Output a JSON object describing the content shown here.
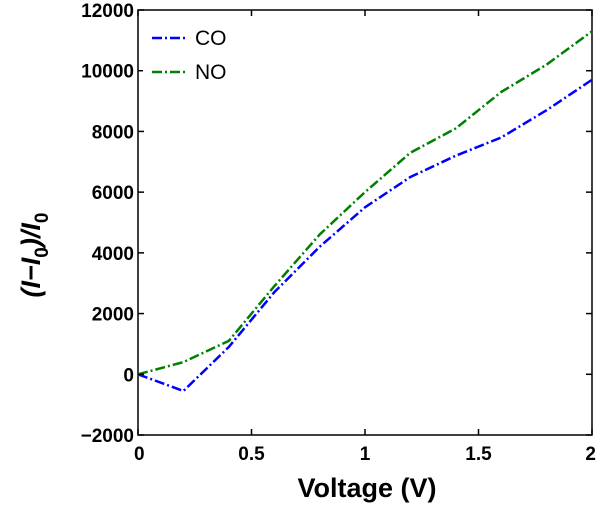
{
  "chart_data": {
    "type": "line",
    "title": "",
    "xlabel": "Voltage (V)",
    "ylabel": {
      "open": "(I−I",
      "sub1": "0",
      "mid": ")/I",
      "sub2": "0"
    },
    "xlim": [
      0,
      2
    ],
    "ylim": [
      -2000,
      12000
    ],
    "x_ticks": [
      0,
      0.5,
      1,
      1.5,
      2
    ],
    "x_tick_labels": [
      "0",
      "0.5",
      "1",
      "1.5",
      "2"
    ],
    "y_ticks": [
      -2000,
      0,
      2000,
      4000,
      6000,
      8000,
      10000,
      12000
    ],
    "y_tick_labels": [
      "−2000",
      "0",
      "2000",
      "4000",
      "6000",
      "8000",
      "10000",
      "12000"
    ],
    "grid": false,
    "legend_position": "top-left",
    "x": [
      0,
      0.2,
      0.4,
      0.6,
      0.8,
      1.0,
      1.2,
      1.4,
      1.6,
      1.8,
      2.0
    ],
    "series": [
      {
        "name": "CO",
        "color": "#0000ff",
        "values": [
          0,
          -550,
          900,
          2700,
          4200,
          5500,
          6500,
          7200,
          7800,
          8700,
          9700
        ]
      },
      {
        "name": "NO",
        "color": "#008000",
        "values": [
          0,
          400,
          1100,
          2900,
          4600,
          6000,
          7300,
          8100,
          9300,
          10200,
          11300
        ]
      }
    ]
  }
}
